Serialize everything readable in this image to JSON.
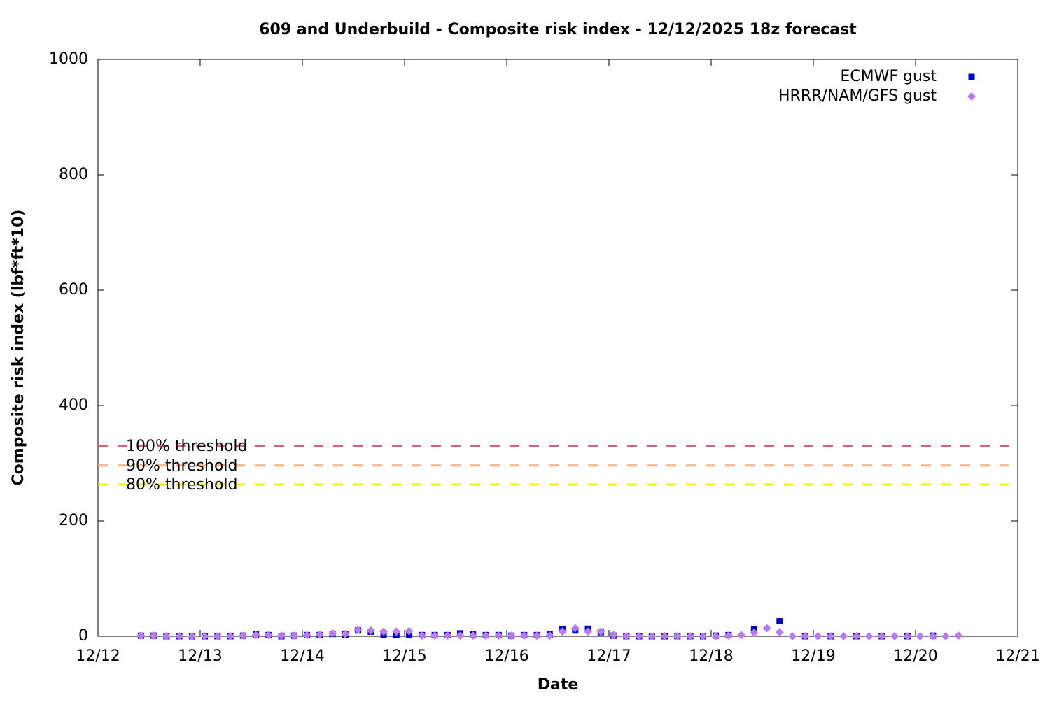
{
  "chart_data": {
    "type": "scatter",
    "title": "609 and Underbuild - Composite risk index - 12/12/2025 18z forecast",
    "x_label": "Date",
    "y_label": "Composite risk index (lbf*ft*10)",
    "xlim": [
      0,
      9
    ],
    "xticks": [
      {
        "value": 0,
        "label": "12/12"
      },
      {
        "value": 1,
        "label": "12/13"
      },
      {
        "value": 2,
        "label": "12/14"
      },
      {
        "value": 3,
        "label": "12/15"
      },
      {
        "value": 4,
        "label": "12/16"
      },
      {
        "value": 5,
        "label": "12/17"
      },
      {
        "value": 6,
        "label": "12/18"
      },
      {
        "value": 7,
        "label": "12/19"
      },
      {
        "value": 8,
        "label": "12/20"
      },
      {
        "value": 9,
        "label": "12/21"
      }
    ],
    "ylim": [
      0,
      1000
    ],
    "yticks": [
      0,
      200,
      400,
      600,
      800,
      1000
    ],
    "legend": "top-right",
    "thresholds": [
      {
        "name": "100% threshold",
        "value": 330,
        "color": "#d9607a"
      },
      {
        "name": "90% threshold",
        "value": 296,
        "color": "#f4b183"
      },
      {
        "name": "80% threshold",
        "value": 263,
        "color": "#f0f000"
      }
    ],
    "series": [
      {
        "name": "ECMWF gust",
        "color": "#0000cc",
        "marker": "square",
        "x": [
          0.42,
          0.545,
          0.67,
          0.795,
          0.92,
          1.045,
          1.17,
          1.295,
          1.42,
          1.545,
          1.67,
          1.795,
          1.92,
          2.045,
          2.17,
          2.295,
          2.42,
          2.545,
          2.67,
          2.795,
          2.92,
          3.045,
          3.17,
          3.295,
          3.42,
          3.545,
          3.67,
          3.795,
          3.92,
          4.045,
          4.17,
          4.295,
          4.42,
          4.545,
          4.67,
          4.795,
          4.92,
          5.045,
          5.17,
          5.295,
          5.42,
          5.545,
          5.67,
          5.795,
          5.92,
          6.045,
          6.17,
          6.42,
          6.67,
          6.92,
          7.17,
          7.42,
          7.67,
          7.92,
          8.17
        ],
        "values": [
          1,
          1,
          0,
          0,
          0,
          0,
          0,
          0,
          1,
          3,
          2,
          0,
          1,
          2,
          2,
          4,
          3,
          10,
          8,
          3,
          3,
          2,
          2,
          2,
          2,
          5,
          3,
          2,
          2,
          1,
          2,
          2,
          3,
          12,
          10,
          13,
          7,
          1,
          0,
          0,
          0,
          0,
          0,
          0,
          0,
          1,
          2,
          12,
          26,
          0,
          0,
          0,
          0,
          0,
          1
        ]
      },
      {
        "name": "HRRR/NAM/GFS gust",
        "color": "#b87cf0",
        "marker": "diamond",
        "x": [
          0.42,
          0.545,
          0.67,
          0.795,
          0.92,
          1.045,
          1.17,
          1.295,
          1.42,
          1.545,
          1.67,
          1.795,
          1.92,
          2.045,
          2.17,
          2.295,
          2.42,
          2.545,
          2.67,
          2.795,
          2.92,
          3.045,
          3.17,
          3.295,
          3.42,
          3.545,
          3.67,
          3.795,
          3.92,
          4.045,
          4.17,
          4.295,
          4.42,
          4.545,
          4.67,
          4.795,
          4.92,
          5.045,
          5.17,
          5.295,
          5.42,
          5.545,
          5.67,
          5.795,
          5.92,
          6.045,
          6.17,
          6.295,
          6.42,
          6.545,
          6.67,
          6.795,
          6.92,
          7.045,
          7.17,
          7.295,
          7.42,
          7.545,
          7.67,
          7.795,
          7.92,
          8.045,
          8.17,
          8.295,
          8.42
        ],
        "values": [
          1,
          1,
          0,
          0,
          0,
          0,
          0,
          0,
          1,
          2,
          2,
          1,
          1,
          2,
          3,
          5,
          4,
          11,
          10,
          8,
          8,
          9,
          1,
          1,
          1,
          1,
          1,
          1,
          1,
          1,
          1,
          1,
          1,
          8,
          14,
          8,
          8,
          2,
          0,
          0,
          0,
          0,
          0,
          0,
          0,
          0,
          1,
          2,
          6,
          14,
          7,
          0,
          0,
          0,
          0,
          0,
          0,
          0,
          0,
          0,
          0,
          0,
          0,
          0,
          1
        ]
      }
    ]
  }
}
